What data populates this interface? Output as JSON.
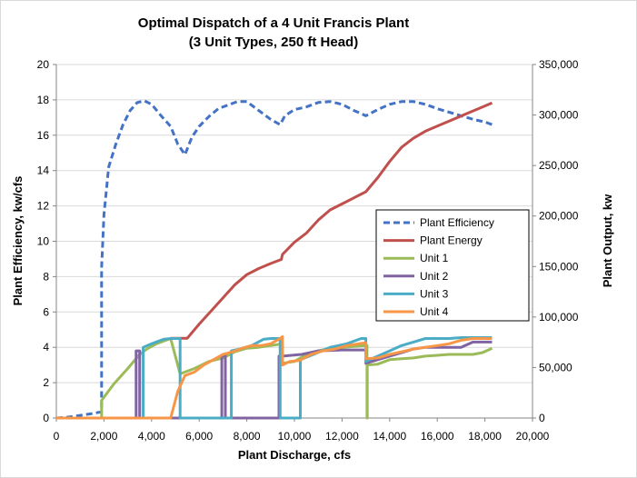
{
  "chart_data": {
    "type": "line",
    "title": "Optimal Dispatch of a 4 Unit Francis Plant",
    "subtitle": "(3 Unit Types, 250 ft Head)",
    "xlabel": "Plant Discharge, cfs",
    "ylabel": "Plant Efficiency, kw/cfs",
    "y2label": "Plant Output, kw",
    "xlim": [
      0,
      20000
    ],
    "ylim": [
      0,
      20
    ],
    "y2lim": [
      0,
      350000
    ],
    "x_ticks": [
      "0",
      "2,000",
      "4,000",
      "6,000",
      "8,000",
      "10,000",
      "12,000",
      "14,000",
      "16,000",
      "18,000",
      "20,000"
    ],
    "y_ticks": [
      "0",
      "2",
      "4",
      "6",
      "8",
      "10",
      "12",
      "14",
      "16",
      "18",
      "20"
    ],
    "y2_ticks": [
      "0",
      "50,000",
      "100,000",
      "150,000",
      "200,000",
      "250,000",
      "300,000",
      "350,000"
    ],
    "grid": true,
    "legend_position": "right",
    "series": [
      {
        "name": "Plant Efficiency",
        "axis": "left",
        "color": "#4472c4",
        "dash": true,
        "points": [
          [
            0,
            0
          ],
          [
            500,
            0.05
          ],
          [
            1000,
            0.15
          ],
          [
            1500,
            0.25
          ],
          [
            1900,
            0.35
          ],
          [
            1900,
            8.5
          ],
          [
            2000,
            11.5
          ],
          [
            2200,
            14.2
          ],
          [
            2500,
            15.5
          ],
          [
            2800,
            16.6
          ],
          [
            3100,
            17.4
          ],
          [
            3400,
            17.85
          ],
          [
            3700,
            17.95
          ],
          [
            4000,
            17.75
          ],
          [
            4400,
            17.1
          ],
          [
            4800,
            16.5
          ],
          [
            5100,
            15.5
          ],
          [
            5400,
            14.9
          ],
          [
            5700,
            15.9
          ],
          [
            6000,
            16.5
          ],
          [
            6400,
            17.05
          ],
          [
            6800,
            17.5
          ],
          [
            7200,
            17.7
          ],
          [
            7600,
            17.9
          ],
          [
            8000,
            17.9
          ],
          [
            8500,
            17.4
          ],
          [
            9000,
            16.9
          ],
          [
            9400,
            16.6
          ],
          [
            9600,
            17.1
          ],
          [
            10000,
            17.45
          ],
          [
            10500,
            17.6
          ],
          [
            11000,
            17.85
          ],
          [
            11500,
            17.9
          ],
          [
            12000,
            17.75
          ],
          [
            12500,
            17.4
          ],
          [
            13000,
            17.1
          ],
          [
            13500,
            17.45
          ],
          [
            14000,
            17.75
          ],
          [
            14500,
            17.9
          ],
          [
            15000,
            17.9
          ],
          [
            15500,
            17.75
          ],
          [
            16000,
            17.5
          ],
          [
            16500,
            17.3
          ],
          [
            17000,
            17.1
          ],
          [
            17500,
            16.9
          ],
          [
            18000,
            16.75
          ],
          [
            18300,
            16.6
          ]
        ]
      },
      {
        "name": "Plant Energy",
        "axis": "right",
        "color": "#c0504d",
        "dash": false,
        "points": [
          [
            4800,
            79000
          ],
          [
            5500,
            79000
          ],
          [
            6000,
            93000
          ],
          [
            6500,
            106000
          ],
          [
            7000,
            119000
          ],
          [
            7500,
            132000
          ],
          [
            8000,
            142000
          ],
          [
            8500,
            148000
          ],
          [
            9000,
            153000
          ],
          [
            9450,
            157000
          ],
          [
            9500,
            162000
          ],
          [
            10000,
            174000
          ],
          [
            10500,
            183000
          ],
          [
            11000,
            196000
          ],
          [
            11500,
            206000
          ],
          [
            12000,
            212000
          ],
          [
            12500,
            218000
          ],
          [
            13000,
            224000
          ],
          [
            13500,
            238000
          ],
          [
            14000,
            254000
          ],
          [
            14500,
            268000
          ],
          [
            15000,
            277000
          ],
          [
            15500,
            284000
          ],
          [
            16000,
            289000
          ],
          [
            16500,
            294000
          ],
          [
            17000,
            299000
          ],
          [
            17500,
            304000
          ],
          [
            18000,
            309000
          ],
          [
            18300,
            312000
          ]
        ]
      },
      {
        "name": "Unit 1",
        "axis": "left",
        "color": "#9bbb59",
        "dash": false,
        "points": [
          [
            1900,
            0
          ],
          [
            1900,
            1.0
          ],
          [
            2400,
            1.9
          ],
          [
            3000,
            2.8
          ],
          [
            3500,
            3.6
          ],
          [
            3800,
            3.9
          ],
          [
            4200,
            4.2
          ],
          [
            4800,
            4.5
          ],
          [
            5200,
            2.5
          ],
          [
            5800,
            2.8
          ],
          [
            6400,
            3.2
          ],
          [
            7000,
            3.4
          ],
          [
            7500,
            3.75
          ],
          [
            8000,
            3.95
          ],
          [
            8500,
            4.0
          ],
          [
            9000,
            4.1
          ],
          [
            9500,
            4.2
          ],
          [
            9500,
            3.1
          ],
          [
            10000,
            3.2
          ],
          [
            10500,
            3.6
          ],
          [
            11000,
            3.8
          ],
          [
            11500,
            3.95
          ],
          [
            12000,
            4.0
          ],
          [
            12500,
            4.05
          ],
          [
            13050,
            4.1
          ],
          [
            13050,
            0
          ],
          [
            13060,
            0
          ],
          [
            13060,
            3.0
          ],
          [
            13500,
            3.05
          ],
          [
            14000,
            3.3
          ],
          [
            14500,
            3.35
          ],
          [
            15000,
            3.4
          ],
          [
            15500,
            3.5
          ],
          [
            16000,
            3.55
          ],
          [
            16500,
            3.6
          ],
          [
            17000,
            3.6
          ],
          [
            17500,
            3.6
          ],
          [
            17900,
            3.7
          ],
          [
            18300,
            3.95
          ]
        ]
      },
      {
        "name": "Unit 2",
        "axis": "left",
        "color": "#8064a2",
        "dash": false,
        "points": [
          [
            3350,
            0
          ],
          [
            3350,
            3.8
          ],
          [
            3500,
            3.8
          ],
          [
            3500,
            0
          ],
          [
            6950,
            0
          ],
          [
            6950,
            3.5
          ],
          [
            7100,
            3.55
          ],
          [
            7100,
            0
          ],
          [
            9350,
            0
          ],
          [
            9350,
            3.5
          ],
          [
            9500,
            3.5
          ],
          [
            10300,
            3.6
          ],
          [
            11000,
            3.8
          ],
          [
            12000,
            3.85
          ],
          [
            12500,
            3.85
          ],
          [
            13000,
            3.85
          ],
          [
            13000,
            3.1
          ],
          [
            13500,
            3.3
          ],
          [
            14000,
            3.5
          ],
          [
            14500,
            3.7
          ],
          [
            15000,
            3.9
          ],
          [
            15500,
            4.0
          ],
          [
            16000,
            4.0
          ],
          [
            16500,
            4.0
          ],
          [
            17000,
            4.0
          ],
          [
            17500,
            4.3
          ],
          [
            18300,
            4.3
          ]
        ]
      },
      {
        "name": "Unit 3",
        "axis": "left",
        "color": "#4bacc6",
        "dash": false,
        "points": [
          [
            3650,
            0
          ],
          [
            3650,
            4.0
          ],
          [
            4000,
            4.2
          ],
          [
            4500,
            4.45
          ],
          [
            4800,
            4.5
          ],
          [
            5200,
            4.5
          ],
          [
            5200,
            0
          ],
          [
            7350,
            0
          ],
          [
            7350,
            3.8
          ],
          [
            7700,
            3.9
          ],
          [
            8200,
            4.1
          ],
          [
            8700,
            4.45
          ],
          [
            9000,
            4.5
          ],
          [
            9400,
            4.5
          ],
          [
            9400,
            0
          ],
          [
            10250,
            0
          ],
          [
            10250,
            3.3
          ],
          [
            10800,
            3.6
          ],
          [
            11500,
            4.0
          ],
          [
            12200,
            4.2
          ],
          [
            12800,
            4.5
          ],
          [
            13000,
            4.5
          ],
          [
            13000,
            3.2
          ],
          [
            13500,
            3.5
          ],
          [
            14000,
            3.8
          ],
          [
            14500,
            4.1
          ],
          [
            15000,
            4.3
          ],
          [
            15500,
            4.5
          ],
          [
            16000,
            4.5
          ],
          [
            16500,
            4.5
          ],
          [
            17000,
            4.55
          ],
          [
            17500,
            4.55
          ],
          [
            18300,
            4.55
          ]
        ]
      },
      {
        "name": "Unit 4",
        "axis": "left",
        "color": "#f79646",
        "dash": false,
        "points": [
          [
            0,
            0
          ],
          [
            4800,
            0
          ],
          [
            5100,
            1.5
          ],
          [
            5400,
            2.4
          ],
          [
            5800,
            2.6
          ],
          [
            6200,
            3.0
          ],
          [
            6600,
            3.3
          ],
          [
            7000,
            3.6
          ],
          [
            7400,
            3.75
          ],
          [
            7800,
            3.95
          ],
          [
            8200,
            4.1
          ],
          [
            8600,
            4.1
          ],
          [
            9000,
            4.2
          ],
          [
            9400,
            4.5
          ],
          [
            9500,
            4.6
          ],
          [
            9500,
            3.0
          ],
          [
            9800,
            3.2
          ],
          [
            10200,
            3.25
          ],
          [
            10700,
            3.6
          ],
          [
            11200,
            3.8
          ],
          [
            11700,
            3.9
          ],
          [
            12200,
            4.1
          ],
          [
            12700,
            4.2
          ],
          [
            13000,
            4.25
          ],
          [
            13000,
            3.35
          ],
          [
            13500,
            3.4
          ],
          [
            14000,
            3.6
          ],
          [
            14500,
            3.75
          ],
          [
            15000,
            3.9
          ],
          [
            15500,
            4.0
          ],
          [
            16000,
            4.1
          ],
          [
            16500,
            4.2
          ],
          [
            17000,
            4.4
          ],
          [
            17500,
            4.5
          ],
          [
            18300,
            4.5
          ]
        ]
      }
    ]
  }
}
